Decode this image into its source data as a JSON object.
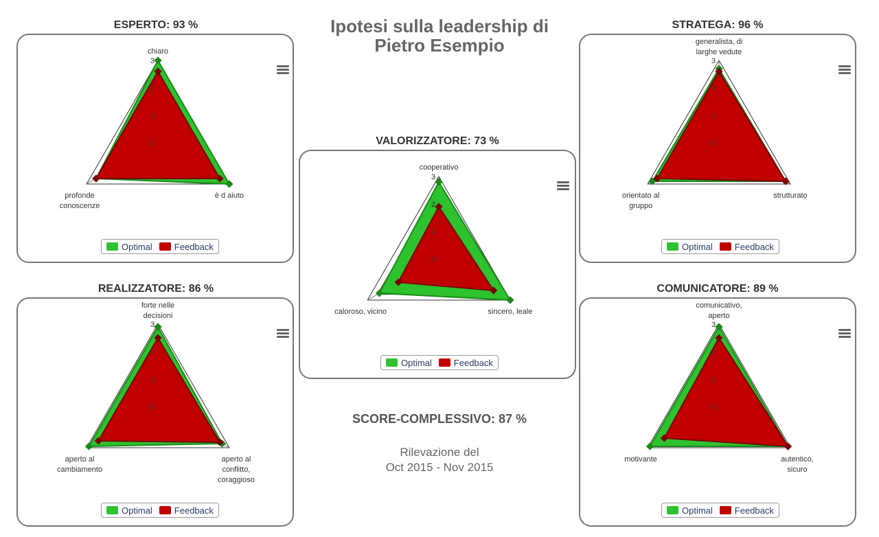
{
  "page": {
    "title_line1": "Ipotesi sulla leadership di",
    "title_line2": "Pietro Esempio",
    "score_label": "SCORE-COMPLESSIVO: 87 %",
    "survey_line1": "Rilevazione del",
    "survey_line2": "Oct 2015 - Nov 2015"
  },
  "colors": {
    "optimal": "#2ec22e",
    "optimal_line": "#1a8a1a",
    "feedback": "#c00000",
    "feedback_line": "#7a0000"
  },
  "chart_data": [
    {
      "type": "radar",
      "title": "ESPERTO: 93 %",
      "axes": [
        "chiaro",
        "è d aiuto",
        "profonde conoscenze"
      ],
      "ticks": [
        "0",
        "1",
        "2",
        "3"
      ],
      "ylim": [
        0,
        3
      ],
      "legend": [
        "Optimal",
        "Feedback"
      ],
      "series": [
        {
          "name": "Optimal",
          "values": [
            3.0,
            3.0,
            2.6
          ]
        },
        {
          "name": "Feedback",
          "values": [
            2.6,
            2.6,
            2.6
          ]
        }
      ]
    },
    {
      "type": "radar",
      "title": "STRATEGA: 96 %",
      "axes": [
        "generalista, di larghe vedute",
        "strutturato",
        "orientato al gruppo"
      ],
      "ticks": [
        "0",
        "1",
        "2",
        "3"
      ],
      "ylim": [
        0,
        3
      ],
      "legend": [
        "Optimal",
        "Feedback"
      ],
      "series": [
        {
          "name": "Optimal",
          "values": [
            2.7,
            2.8,
            2.8
          ]
        },
        {
          "name": "Feedback",
          "values": [
            2.6,
            2.8,
            2.6
          ]
        }
      ]
    },
    {
      "type": "radar",
      "title": "VALORIZZATORE: 73 %",
      "axes": [
        "cooperativo",
        "sincero, leale",
        "caloroso, vicino"
      ],
      "ticks": [
        "0",
        "1",
        "2",
        "3"
      ],
      "ylim": [
        0,
        3
      ],
      "legend": [
        "Optimal",
        "Feedback"
      ],
      "series": [
        {
          "name": "Optimal",
          "values": [
            2.8,
            3.0,
            2.5
          ]
        },
        {
          "name": "Feedback",
          "values": [
            1.9,
            2.3,
            1.7
          ]
        }
      ]
    },
    {
      "type": "radar",
      "title": "REALIZZATORE: 86 %",
      "axes": [
        "forte nelle decisioni",
        "aperto al conflitto, coraggioso",
        "aperto al cambiamento"
      ],
      "ticks": [
        "0",
        "1",
        "2",
        "3"
      ],
      "ylim": [
        0,
        3
      ],
      "legend": [
        "Optimal",
        "Feedback"
      ],
      "series": [
        {
          "name": "Optimal",
          "values": [
            2.9,
            2.7,
            2.9
          ]
        },
        {
          "name": "Feedback",
          "values": [
            2.5,
            2.6,
            2.5
          ]
        }
      ]
    },
    {
      "type": "radar",
      "title": "COMUNICATORE: 89 %",
      "axes": [
        "comunicativo, aperto",
        "autentico, sicuro",
        "motivante"
      ],
      "ticks": [
        "0",
        "1",
        "2",
        "3"
      ],
      "ylim": [
        0,
        3
      ],
      "legend": [
        "Optimal",
        "Feedback"
      ],
      "series": [
        {
          "name": "Optimal",
          "values": [
            2.9,
            2.9,
            2.9
          ]
        },
        {
          "name": "Feedback",
          "values": [
            2.5,
            2.9,
            2.3
          ]
        }
      ]
    }
  ]
}
